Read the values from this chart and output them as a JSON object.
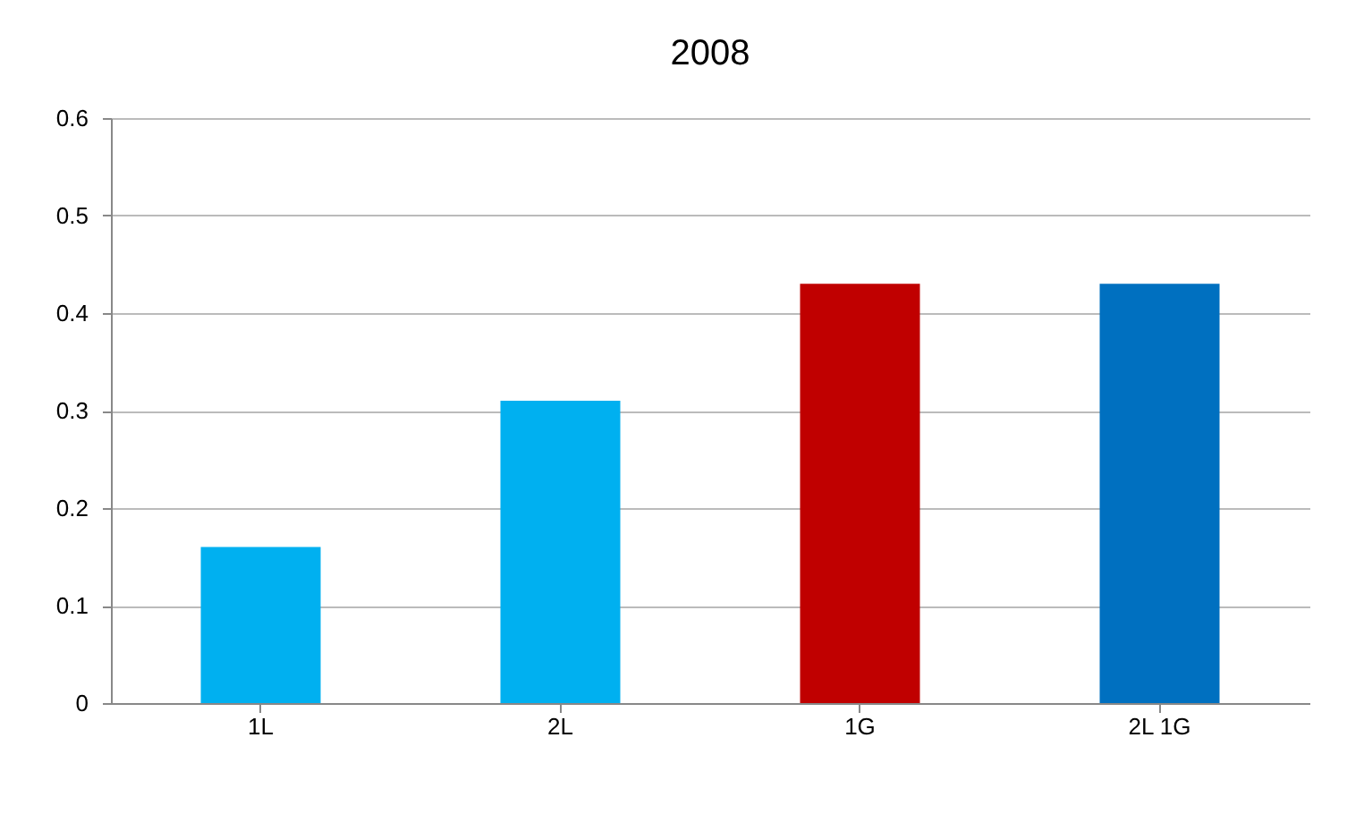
{
  "chart_data": {
    "type": "bar",
    "title": "2008",
    "categories": [
      "1L",
      "2L",
      "1G",
      "2L 1G"
    ],
    "values": [
      0.16,
      0.31,
      0.43,
      0.43
    ],
    "colors": [
      "#00b0f0",
      "#00b0f0",
      "#c00000",
      "#0070c0"
    ],
    "ylim": [
      0,
      0.6
    ],
    "yticks": [
      0,
      0.1,
      0.2,
      0.3,
      0.4,
      0.5,
      0.6
    ],
    "grid": "y"
  }
}
